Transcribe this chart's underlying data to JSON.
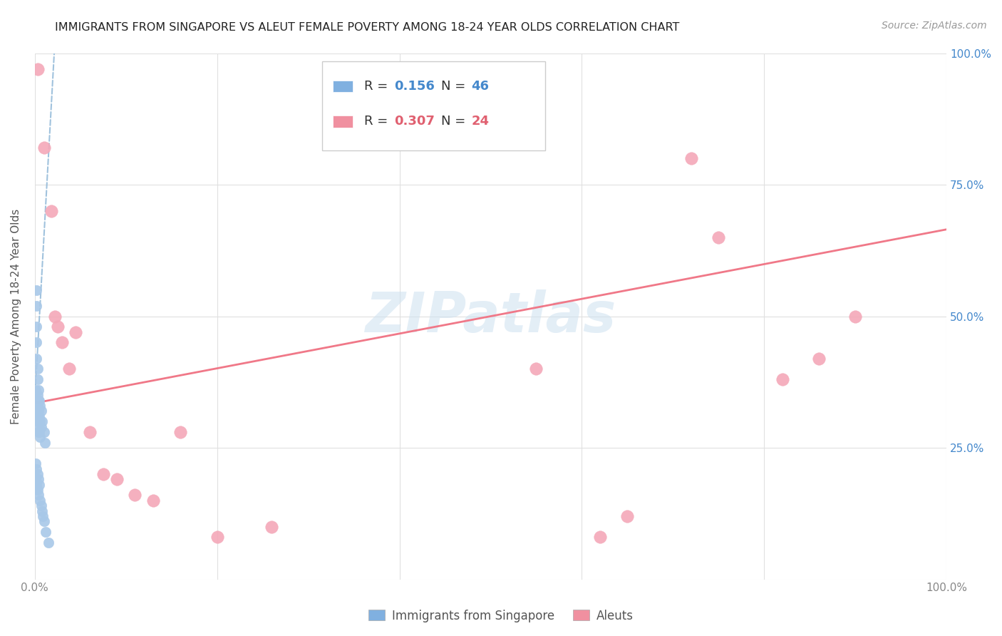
{
  "title": "IMMIGRANTS FROM SINGAPORE VS ALEUT FEMALE POVERTY AMONG 18-24 YEAR OLDS CORRELATION CHART",
  "source": "Source: ZipAtlas.com",
  "ylabel": "Female Poverty Among 18-24 Year Olds",
  "xlim": [
    0,
    1.0
  ],
  "ylim": [
    0,
    1.0
  ],
  "color_blue": "#a8c8e8",
  "color_pink": "#f4a8b8",
  "color_blue_line": "#90b8d8",
  "color_pink_line": "#f07888",
  "color_legend_blue": "#80b0e0",
  "color_legend_pink": "#f090a0",
  "watermark": "ZIPatlas",
  "singapore_x": [
    0.001,
    0.001,
    0.001,
    0.002,
    0.002,
    0.002,
    0.002,
    0.002,
    0.003,
    0.003,
    0.003,
    0.003,
    0.003,
    0.003,
    0.004,
    0.004,
    0.004,
    0.004,
    0.004,
    0.005,
    0.005,
    0.005,
    0.006,
    0.006,
    0.006,
    0.007,
    0.007,
    0.008,
    0.01,
    0.011,
    0.001,
    0.001,
    0.002,
    0.002,
    0.003,
    0.003,
    0.004,
    0.004,
    0.005,
    0.006,
    0.007,
    0.008,
    0.009,
    0.01,
    0.012,
    0.015
  ],
  "singapore_y": [
    0.36,
    0.34,
    0.32,
    0.55,
    0.52,
    0.48,
    0.45,
    0.42,
    0.4,
    0.38,
    0.35,
    0.33,
    0.31,
    0.29,
    0.36,
    0.34,
    0.32,
    0.3,
    0.28,
    0.34,
    0.31,
    0.28,
    0.33,
    0.3,
    0.27,
    0.32,
    0.29,
    0.3,
    0.28,
    0.26,
    0.22,
    0.19,
    0.21,
    0.18,
    0.2,
    0.17,
    0.19,
    0.16,
    0.18,
    0.15,
    0.14,
    0.13,
    0.12,
    0.11,
    0.09,
    0.07
  ],
  "aleut_x": [
    0.003,
    0.01,
    0.018,
    0.022,
    0.025,
    0.03,
    0.038,
    0.045,
    0.06,
    0.075,
    0.09,
    0.11,
    0.13,
    0.16,
    0.2,
    0.26,
    0.55,
    0.62,
    0.65,
    0.72,
    0.75,
    0.82,
    0.86,
    0.9
  ],
  "aleut_y": [
    0.97,
    0.82,
    0.7,
    0.5,
    0.48,
    0.45,
    0.4,
    0.47,
    0.28,
    0.2,
    0.19,
    0.16,
    0.15,
    0.28,
    0.08,
    0.1,
    0.4,
    0.08,
    0.12,
    0.8,
    0.65,
    0.38,
    0.42,
    0.5
  ],
  "sg_trend_x0": 0.0,
  "sg_trend_y0": 0.34,
  "sg_trend_x1": 0.022,
  "sg_trend_y1": 1.02,
  "al_trend_x0": 0.0,
  "al_trend_y0": 0.335,
  "al_trend_x1": 1.0,
  "al_trend_y1": 0.665
}
